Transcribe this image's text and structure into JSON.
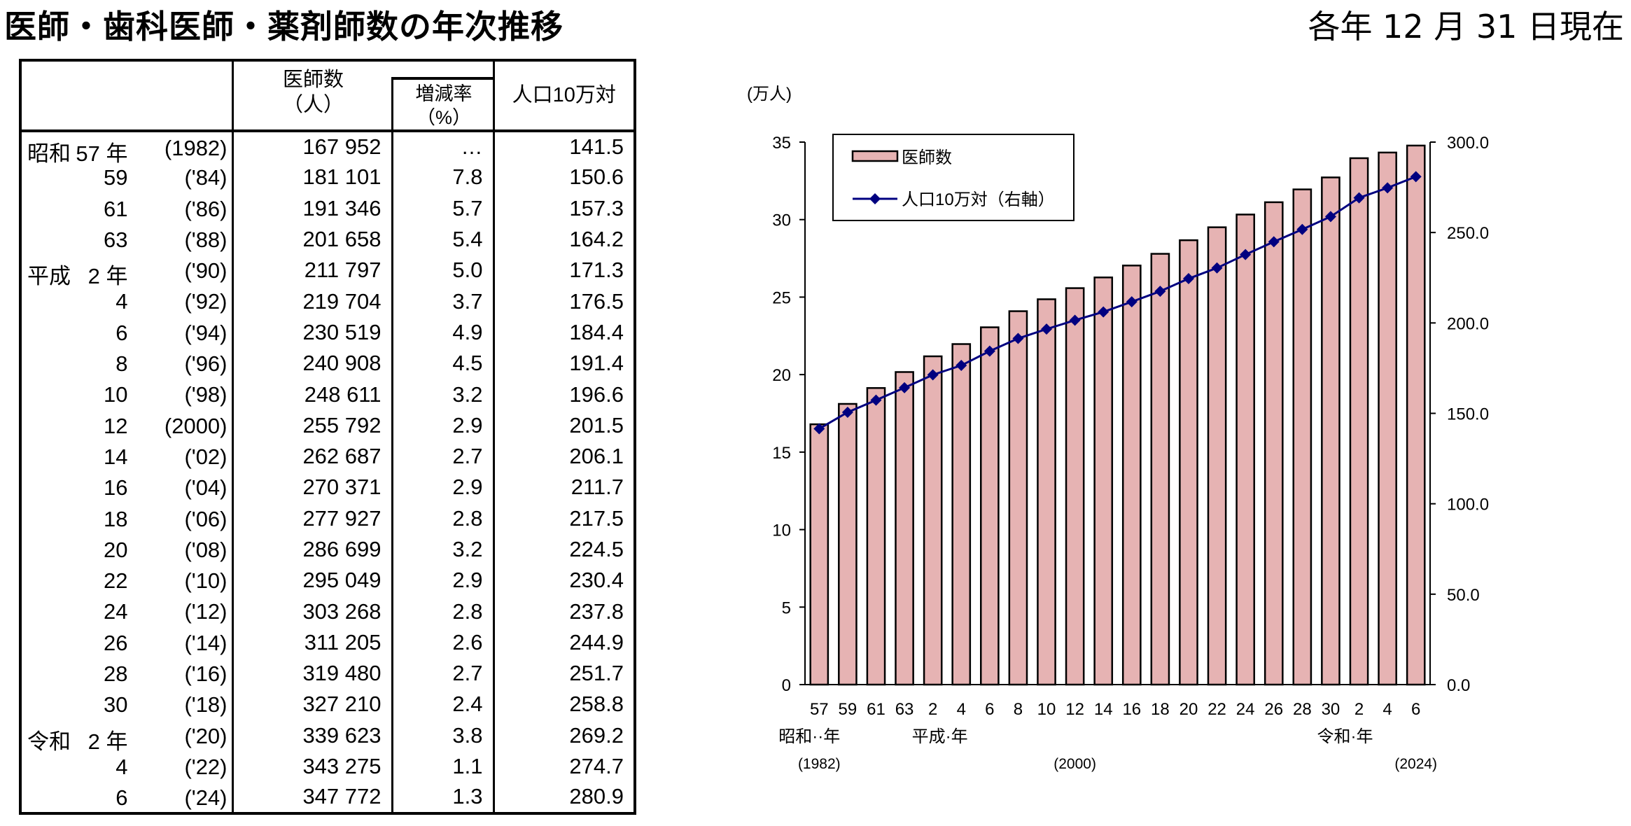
{
  "title": "医師・歯科医師・薬剤師数の年次推移",
  "as_of": "各年 12 月 31 日現在",
  "table": {
    "headers": {
      "count": "医師数",
      "count_unit": "（人）",
      "rate": "増減率",
      "rate_unit": "（%）",
      "per100k": "人口10万対"
    },
    "rows": [
      {
        "era": "昭和",
        "year": "57 年",
        "western": "(1982)",
        "count": "167 952",
        "rate": "…",
        "per100k": "141.5"
      },
      {
        "era": "",
        "year": "59",
        "western": "('84)",
        "count": "181 101",
        "rate": "7.8",
        "per100k": "150.6"
      },
      {
        "era": "",
        "year": "61",
        "western": "('86)",
        "count": "191 346",
        "rate": "5.7",
        "per100k": "157.3"
      },
      {
        "era": "",
        "year": "63",
        "western": "('88)",
        "count": "201 658",
        "rate": "5.4",
        "per100k": "164.2"
      },
      {
        "era": "平成",
        "year": "2 年",
        "western": "('90)",
        "count": "211 797",
        "rate": "5.0",
        "per100k": "171.3"
      },
      {
        "era": "",
        "year": "4",
        "western": "('92)",
        "count": "219 704",
        "rate": "3.7",
        "per100k": "176.5"
      },
      {
        "era": "",
        "year": "6",
        "western": "('94)",
        "count": "230 519",
        "rate": "4.9",
        "per100k": "184.4"
      },
      {
        "era": "",
        "year": "8",
        "western": "('96)",
        "count": "240 908",
        "rate": "4.5",
        "per100k": "191.4"
      },
      {
        "era": "",
        "year": "10",
        "western": "('98)",
        "count": "248 611",
        "rate": "3.2",
        "per100k": "196.6"
      },
      {
        "era": "",
        "year": "12",
        "western": "(2000)",
        "count": "255 792",
        "rate": "2.9",
        "per100k": "201.5"
      },
      {
        "era": "",
        "year": "14",
        "western": "('02)",
        "count": "262 687",
        "rate": "2.7",
        "per100k": "206.1"
      },
      {
        "era": "",
        "year": "16",
        "western": "('04)",
        "count": "270 371",
        "rate": "2.9",
        "per100k": "211.7"
      },
      {
        "era": "",
        "year": "18",
        "western": "('06)",
        "count": "277 927",
        "rate": "2.8",
        "per100k": "217.5"
      },
      {
        "era": "",
        "year": "20",
        "western": "('08)",
        "count": "286 699",
        "rate": "3.2",
        "per100k": "224.5"
      },
      {
        "era": "",
        "year": "22",
        "western": "('10)",
        "count": "295 049",
        "rate": "2.9",
        "per100k": "230.4"
      },
      {
        "era": "",
        "year": "24",
        "western": "('12)",
        "count": "303 268",
        "rate": "2.8",
        "per100k": "237.8"
      },
      {
        "era": "",
        "year": "26",
        "western": "('14)",
        "count": "311 205",
        "rate": "2.6",
        "per100k": "244.9"
      },
      {
        "era": "",
        "year": "28",
        "western": "('16)",
        "count": "319 480",
        "rate": "2.7",
        "per100k": "251.7"
      },
      {
        "era": "",
        "year": "30",
        "western": "('18)",
        "count": "327 210",
        "rate": "2.4",
        "per100k": "258.8"
      },
      {
        "era": "令和",
        "year": "2 年",
        "western": "('20)",
        "count": "339 623",
        "rate": "3.8",
        "per100k": "269.2"
      },
      {
        "era": "",
        "year": "4",
        "western": "('22)",
        "count": "343 275",
        "rate": "1.1",
        "per100k": "274.7"
      },
      {
        "era": "",
        "year": "6",
        "western": "('24)",
        "count": "347 772",
        "rate": "1.3",
        "per100k": "280.9"
      }
    ]
  },
  "chart_data": {
    "type": "bar+line",
    "categories": [
      "57",
      "59",
      "61",
      "63",
      "2",
      "4",
      "6",
      "8",
      "10",
      "12",
      "14",
      "16",
      "18",
      "20",
      "22",
      "24",
      "26",
      "28",
      "30",
      "2",
      "4",
      "6"
    ],
    "era_labels": [
      {
        "text": "昭和··年",
        "at": 0
      },
      {
        "text": "平成·年",
        "at": 4
      },
      {
        "text": "令和·年",
        "at": 19
      }
    ],
    "year_labels": [
      {
        "text": "(1982)",
        "at": 0
      },
      {
        "text": "(2000)",
        "at": 9
      },
      {
        "text": "(2024)",
        "at": 21
      }
    ],
    "left_axis": {
      "unit_label": "(万人)",
      "ylim": [
        0,
        35
      ],
      "ticks": [
        0,
        5,
        10,
        15,
        20,
        25,
        30,
        35
      ]
    },
    "right_axis": {
      "ylim": [
        0,
        300
      ],
      "ticks": [
        "0.0",
        "50.0",
        "100.0",
        "150.0",
        "200.0",
        "250.0",
        "300.0"
      ]
    },
    "series": [
      {
        "name": "医師数",
        "type": "bar",
        "axis": "left",
        "color": "#e6b3b3",
        "values": [
          16.7952,
          18.1101,
          19.1346,
          20.1658,
          21.1797,
          21.9704,
          23.0519,
          24.0908,
          24.8611,
          25.5792,
          26.2687,
          27.0371,
          27.7927,
          28.6699,
          29.5049,
          30.3268,
          31.1205,
          31.948,
          32.721,
          33.9623,
          34.3275,
          34.7772
        ]
      },
      {
        "name": "人口10万対（右軸）",
        "type": "line",
        "axis": "right",
        "color": "#000080",
        "values": [
          141.5,
          150.6,
          157.3,
          164.2,
          171.3,
          176.5,
          184.4,
          191.4,
          196.6,
          201.5,
          206.1,
          211.7,
          217.5,
          224.5,
          230.4,
          237.8,
          244.9,
          251.7,
          258.8,
          269.2,
          274.7,
          280.9
        ]
      }
    ],
    "legend": "top-left",
    "grid": false
  }
}
